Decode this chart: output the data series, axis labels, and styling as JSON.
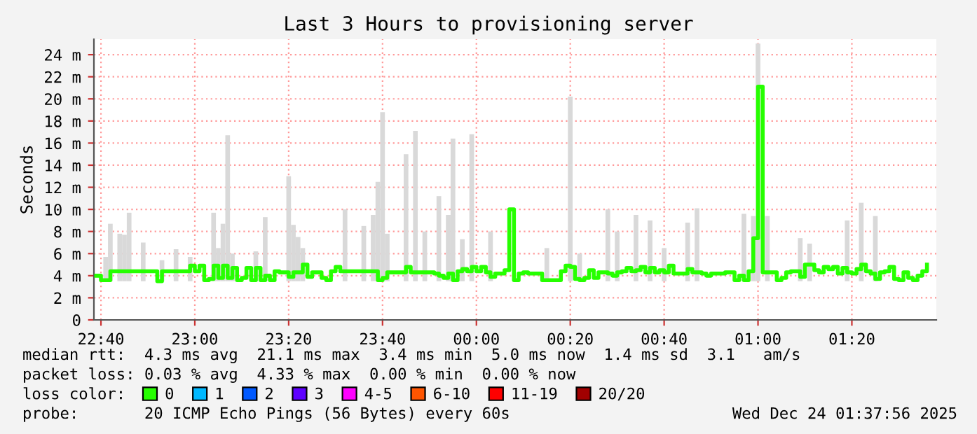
{
  "chart_data": {
    "type": "bar",
    "title": "Last 3 Hours to provisioning server",
    "ylabel": "Seconds",
    "legend_title": "loss color:",
    "legend": "bottom",
    "grid": true,
    "xlim": [
      "2025-12-23T22:38:30",
      "2025-12-24T01:38"
    ],
    "xticks": [
      {
        "value": "2025-12-23T22:40",
        "label": "22:40"
      },
      {
        "value": "2025-12-23T23:00",
        "label": "23:00"
      },
      {
        "value": "2025-12-23T23:20",
        "label": "23:20"
      },
      {
        "value": "2025-12-23T23:40",
        "label": "23:40"
      },
      {
        "value": "2025-12-24T00:00",
        "label": "00:00"
      },
      {
        "value": "2025-12-24T00:20",
        "label": "00:20"
      },
      {
        "value": "2025-12-24T00:40",
        "label": "00:40"
      },
      {
        "value": "2025-12-24T01:00",
        "label": "01:00"
      },
      {
        "value": "2025-12-24T01:20",
        "label": "01:20"
      }
    ],
    "ylim": [
      0,
      25.4
    ],
    "yticks": [
      0,
      {
        "value": 2,
        "label": "2 m"
      },
      {
        "value": 4,
        "label": "4 m"
      },
      {
        "value": 6,
        "label": "6 m"
      },
      {
        "value": 8,
        "label": "8 m"
      },
      {
        "value": 10,
        "label": "10 m"
      },
      {
        "value": 12,
        "label": "12 m"
      },
      {
        "value": 14,
        "label": "14 m"
      },
      {
        "value": 16,
        "label": "16 m"
      },
      {
        "value": 18,
        "label": "18 m"
      },
      {
        "value": 20,
        "label": "20 m"
      },
      {
        "value": 22,
        "label": "22 m"
      },
      {
        "value": 24,
        "label": "24 m"
      }
    ],
    "annotations": [
      "median rtt:  4.3 ms avg  21.1 ms max  3.4 ms min  5.0 ms now  1.4 ms sd  3.1   am/s",
      "packet loss: 0.03 % avg  4.33 % max  0.00 % min  0.00 % now",
      "probe:       20 ICMP Echo Pings (56 Bytes) every 60s",
      "Wed Dec 24 01:37:56 2025"
    ],
    "series": [
      {
        "color": "#d9d9d9",
        "x": [
          "2025-12-23T22:41",
          "2025-12-23T22:42",
          "2025-12-23T22:44",
          "2025-12-23T22:45",
          "2025-12-23T22:46",
          "2025-12-23T22:49",
          "2025-12-23T22:53",
          "2025-12-23T22:56",
          "2025-12-23T22:59",
          "2025-12-23T23:04",
          "2025-12-23T23:05",
          "2025-12-23T23:06",
          "2025-12-23T23:07",
          "2025-12-23T23:08",
          "2025-12-23T23:13",
          "2025-12-23T23:15",
          "2025-12-23T23:20",
          "2025-12-23T23:21",
          "2025-12-23T23:22",
          "2025-12-23T23:23",
          "2025-12-23T23:32",
          "2025-12-23T23:36",
          "2025-12-23T23:38",
          "2025-12-23T23:39",
          "2025-12-23T23:40",
          "2025-12-23T23:41",
          "2025-12-23T23:45",
          "2025-12-23T23:47",
          "2025-12-23T23:49",
          "2025-12-23T23:52",
          "2025-12-23T23:54",
          "2025-12-23T23:55",
          "2025-12-23T23:57",
          "2025-12-23T23:59",
          "2025-12-24T00:03",
          "2025-12-24T00:15",
          "2025-12-24T00:20",
          "2025-12-24T00:22",
          "2025-12-24T00:28",
          "2025-12-24T00:30",
          "2025-12-24T00:34",
          "2025-12-24T00:37",
          "2025-12-24T00:40",
          "2025-12-24T00:45",
          "2025-12-24T00:47",
          "2025-12-24T00:57",
          "2025-12-24T00:59",
          "2025-12-24T01:00",
          "2025-12-24T01:02",
          "2025-12-24T01:09",
          "2025-12-24T01:11",
          "2025-12-24T01:19",
          "2025-12-24T01:22",
          "2025-12-24T01:25"
        ],
        "base": [
          3.5,
          3.5,
          3.5,
          3.5,
          3.5,
          3.5,
          3.5,
          3.5,
          3.5,
          3.5,
          3.5,
          3.5,
          3.5,
          3.5,
          3.5,
          3.5,
          3.5,
          3.5,
          3.5,
          3.5,
          3.5,
          3.5,
          3.5,
          3.5,
          3.5,
          3.5,
          3.5,
          3.5,
          3.5,
          3.5,
          3.5,
          3.5,
          3.5,
          3.5,
          3.5,
          3.5,
          3.5,
          3.5,
          3.5,
          3.5,
          3.5,
          3.5,
          3.5,
          3.5,
          3.5,
          3.5,
          3.5,
          3.5,
          3.5,
          3.5,
          3.5,
          3.5,
          3.5,
          3.5
        ],
        "values": [
          2.2,
          5.2,
          4.3,
          4.2,
          6.2,
          3.5,
          1.9,
          2.9,
          2.2,
          6.2,
          3.0,
          5.2,
          13.2,
          2.5,
          2.7,
          5.8,
          9.5,
          5.1,
          4.0,
          3.0,
          6.5,
          5.0,
          6.0,
          9.0,
          15.3,
          4.3,
          11.5,
          13.6,
          4.5,
          7.7,
          6.0,
          12.9,
          3.8,
          13.3,
          4.5,
          3.0,
          16.7,
          2.5,
          6.5,
          4.5,
          6.0,
          5.5,
          3.0,
          5.3,
          6.6,
          6.1,
          5.9,
          21.5,
          5.9,
          3.9,
          3.4,
          5.5,
          7.1,
          5.9
        ]
      },
      {
        "type": "step",
        "name": "0",
        "color": "#26ff00",
        "x": [
          "2025-12-23T22:39",
          "2025-12-23T22:40",
          "2025-12-23T22:42",
          "2025-12-23T22:52",
          "2025-12-23T22:53",
          "2025-12-23T22:59",
          "2025-12-23T23:00",
          "2025-12-23T23:01",
          "2025-12-23T23:02",
          "2025-12-23T23:03",
          "2025-12-23T23:04",
          "2025-12-23T23:05",
          "2025-12-23T23:06",
          "2025-12-23T23:07",
          "2025-12-23T23:08",
          "2025-12-23T23:09",
          "2025-12-23T23:10",
          "2025-12-23T23:11",
          "2025-12-23T23:12",
          "2025-12-23T23:13",
          "2025-12-23T23:14",
          "2025-12-23T23:15",
          "2025-12-23T23:16",
          "2025-12-23T23:17",
          "2025-12-23T23:18",
          "2025-12-23T23:20",
          "2025-12-23T23:21",
          "2025-12-23T23:23",
          "2025-12-23T23:24",
          "2025-12-23T23:25",
          "2025-12-23T23:27",
          "2025-12-23T23:28",
          "2025-12-23T23:29",
          "2025-12-23T23:30",
          "2025-12-23T23:31",
          "2025-12-23T23:39",
          "2025-12-23T23:40",
          "2025-12-23T23:41",
          "2025-12-23T23:45",
          "2025-12-23T23:46",
          "2025-12-23T23:51",
          "2025-12-23T23:52",
          "2025-12-23T23:53",
          "2025-12-23T23:54",
          "2025-12-23T23:55",
          "2025-12-23T23:56",
          "2025-12-23T23:57",
          "2025-12-23T23:58",
          "2025-12-23T23:59",
          "2025-12-24T00:00",
          "2025-12-24T00:01",
          "2025-12-24T00:02",
          "2025-12-24T00:03",
          "2025-12-24T00:04",
          "2025-12-24T00:06",
          "2025-12-24T00:07",
          "2025-12-24T00:08",
          "2025-12-24T00:09",
          "2025-12-24T00:10",
          "2025-12-24T00:11",
          "2025-12-24T00:14",
          "2025-12-24T00:18",
          "2025-12-24T00:19",
          "2025-12-24T00:20",
          "2025-12-24T00:21",
          "2025-12-24T00:22",
          "2025-12-24T00:23",
          "2025-12-24T00:24",
          "2025-12-24T00:25",
          "2025-12-24T00:26",
          "2025-12-24T00:28",
          "2025-12-24T00:29",
          "2025-12-24T00:30",
          "2025-12-24T00:31",
          "2025-12-24T00:32",
          "2025-12-24T00:33",
          "2025-12-24T00:34",
          "2025-12-24T00:35",
          "2025-12-24T00:36",
          "2025-12-24T00:37",
          "2025-12-24T00:38",
          "2025-12-24T00:39",
          "2025-12-24T00:40",
          "2025-12-24T00:41",
          "2025-12-24T00:42",
          "2025-12-24T00:45",
          "2025-12-24T00:46",
          "2025-12-24T00:48",
          "2025-12-24T00:49",
          "2025-12-24T00:50",
          "2025-12-24T00:53",
          "2025-12-24T00:55",
          "2025-12-24T00:56",
          "2025-12-24T00:57",
          "2025-12-24T00:58",
          "2025-12-24T00:59",
          "2025-12-24T01:00",
          "2025-12-24T01:01",
          "2025-12-24T01:04",
          "2025-12-24T01:05",
          "2025-12-24T01:06",
          "2025-12-24T01:07",
          "2025-12-24T01:09",
          "2025-12-24T01:10",
          "2025-12-24T01:12",
          "2025-12-24T01:13",
          "2025-12-24T01:14",
          "2025-12-24T01:15",
          "2025-12-24T01:16",
          "2025-12-24T01:17",
          "2025-12-24T01:18",
          "2025-12-24T01:19",
          "2025-12-24T01:20",
          "2025-12-24T01:21",
          "2025-12-24T01:22",
          "2025-12-24T01:23",
          "2025-12-24T01:24",
          "2025-12-24T01:25",
          "2025-12-24T01:26",
          "2025-12-24T01:27",
          "2025-12-24T01:28",
          "2025-12-24T01:29",
          "2025-12-24T01:30",
          "2025-12-24T01:31",
          "2025-12-24T01:32",
          "2025-12-24T01:33",
          "2025-12-24T01:34",
          "2025-12-24T01:35",
          "2025-12-24T01:36"
        ],
        "values": [
          4.0,
          3.6,
          4.4,
          3.5,
          4.4,
          4.9,
          4.4,
          4.9,
          3.6,
          3.7,
          4.9,
          3.8,
          4.9,
          3.8,
          4.7,
          3.6,
          3.8,
          4.7,
          3.6,
          4.7,
          3.6,
          4.0,
          3.6,
          4.4,
          4.3,
          3.9,
          4.3,
          5.0,
          3.9,
          4.3,
          3.8,
          3.6,
          4.4,
          4.8,
          4.4,
          3.6,
          3.8,
          4.3,
          4.8,
          4.3,
          4.2,
          4.0,
          3.8,
          4.2,
          3.6,
          4.4,
          4.6,
          4.4,
          4.8,
          4.4,
          4.8,
          4.3,
          3.9,
          4.2,
          4.5,
          10.0,
          3.6,
          4.2,
          4.3,
          4.2,
          3.6,
          4.4,
          4.9,
          4.8,
          3.7,
          3.6,
          3.8,
          4.5,
          3.8,
          4.3,
          4.2,
          4.0,
          4.3,
          4.4,
          4.7,
          4.4,
          4.5,
          4.8,
          4.3,
          4.7,
          4.3,
          4.5,
          4.3,
          4.9,
          4.2,
          4.6,
          4.3,
          4.2,
          4.0,
          4.2,
          4.3,
          3.6,
          4.0,
          3.6,
          4.4,
          7.4,
          21.1,
          4.3,
          3.6,
          3.8,
          4.3,
          4.4,
          3.9,
          5.0,
          4.5,
          4.3,
          4.8,
          4.6,
          4.8,
          4.2,
          4.7,
          4.3,
          4.2,
          4.6,
          5.0,
          4.4,
          4.2,
          3.7,
          4.3,
          4.4,
          4.8,
          3.7,
          3.6,
          4.3,
          3.8,
          3.6,
          4.0,
          4.4,
          5.0
        ]
      },
      {
        "type": "step",
        "name": "1",
        "color": "#00b8ff"
      },
      {
        "type": "step",
        "name": "2",
        "color": "#0059ff"
      },
      {
        "type": "step",
        "name": "3",
        "color": "#5e00ff"
      },
      {
        "type": "step",
        "name": "4-5",
        "color": "#ff00ff"
      },
      {
        "type": "step",
        "name": "6-10",
        "color": "#ff5500"
      },
      {
        "type": "step",
        "name": "11-19",
        "color": "#ff0000"
      },
      {
        "type": "step",
        "name": "20/20",
        "color": "#a10000"
      }
    ]
  }
}
